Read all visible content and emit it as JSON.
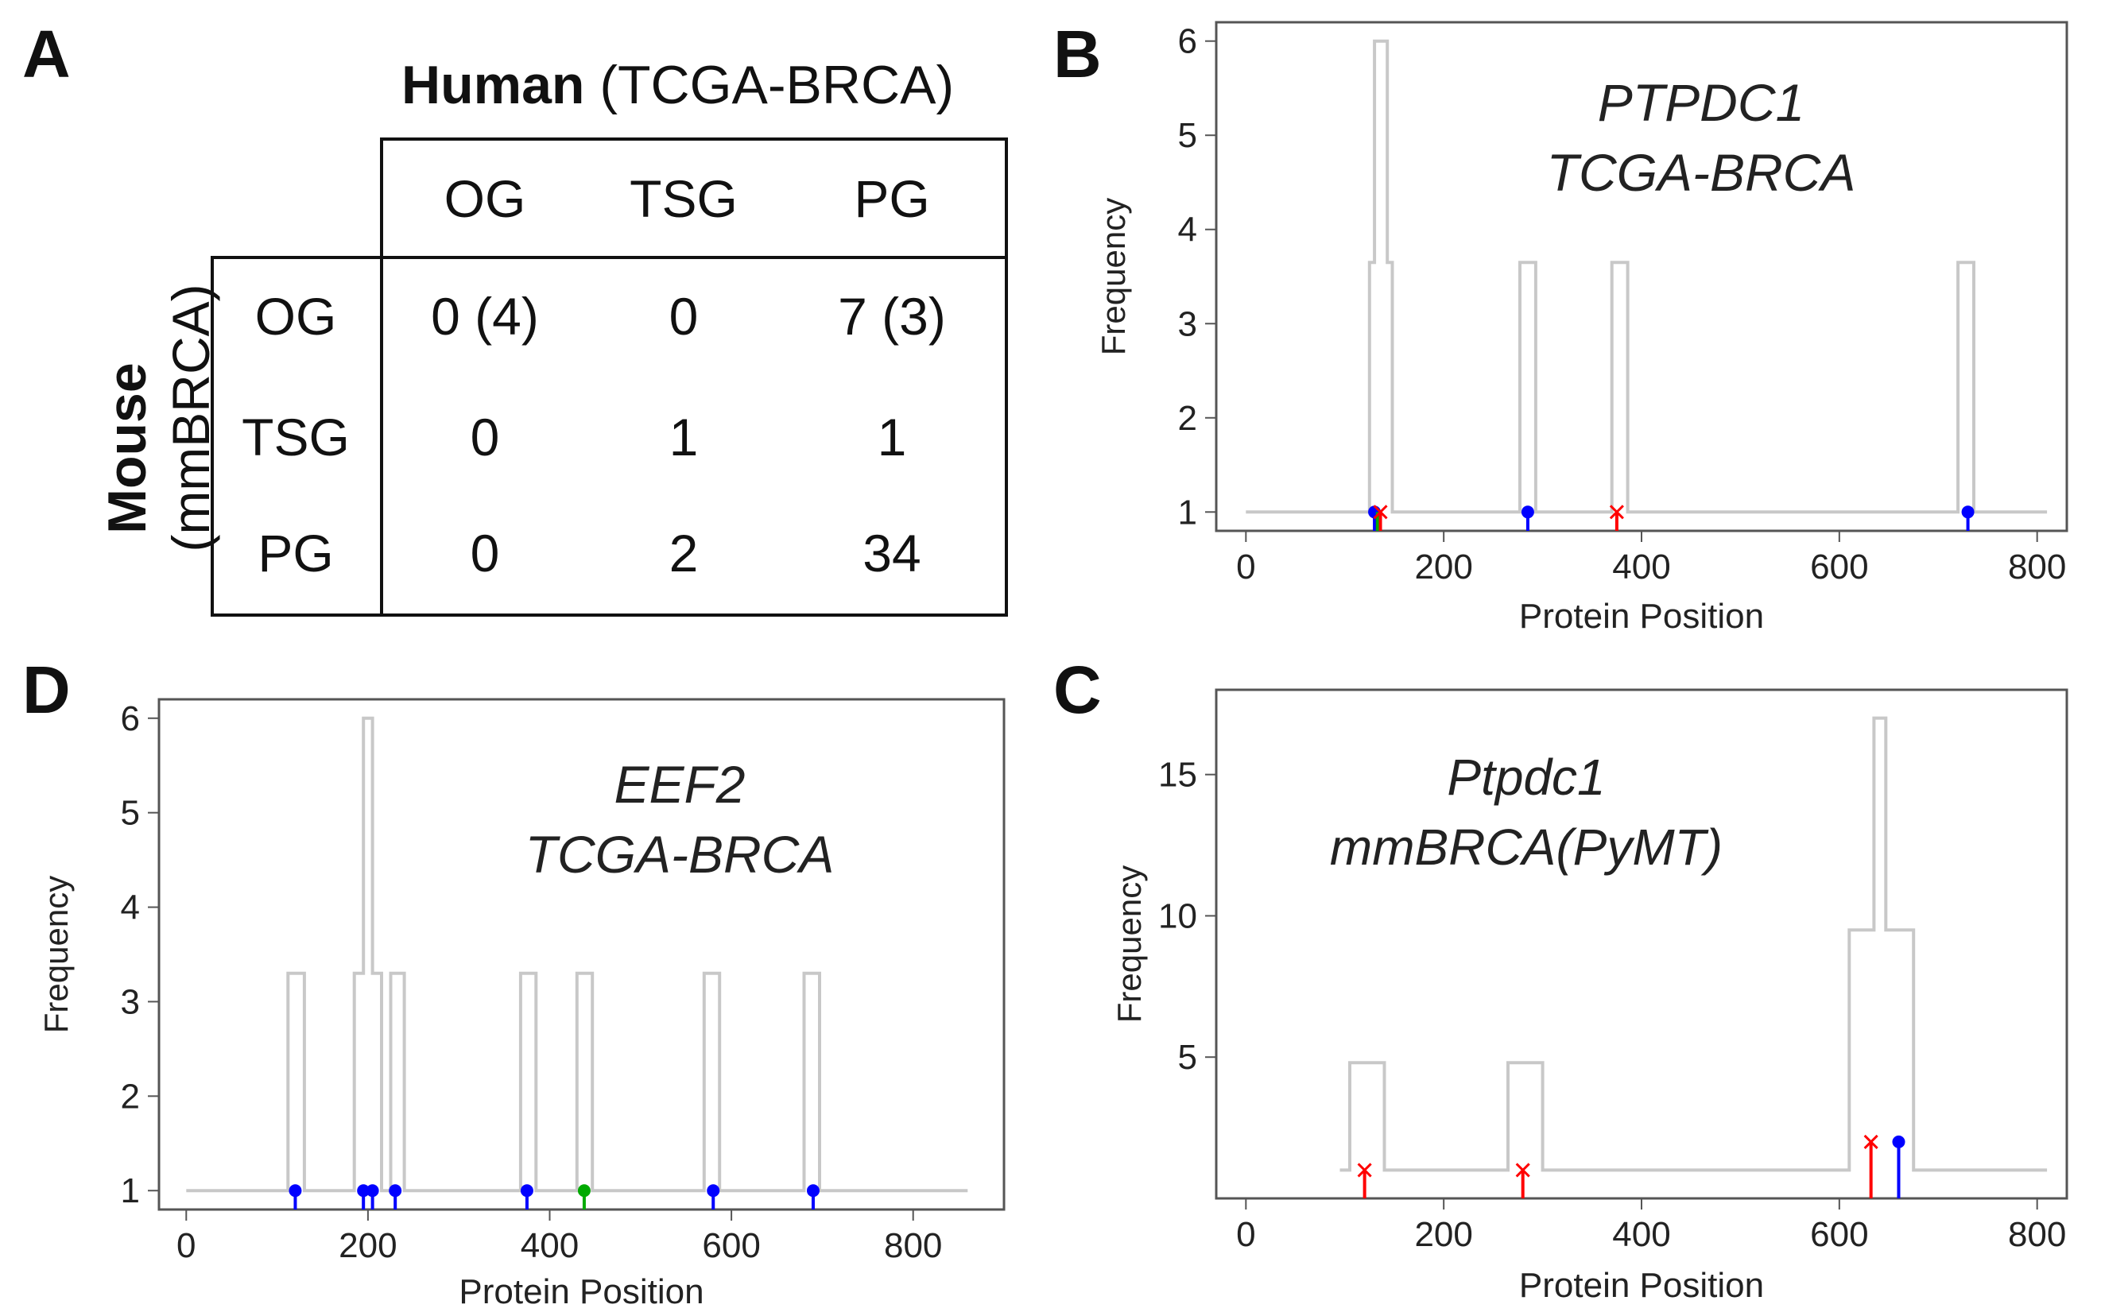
{
  "panels": {
    "a": {
      "letter": "A",
      "human_label_bold": "Human",
      "human_label_rest": "(TCGA-BRCA)",
      "mouse_label_bold": "Mouse",
      "mouse_label_rest": "(mmBRCA)",
      "col_headers": [
        "OG",
        "TSG",
        "PG"
      ],
      "row_headers": [
        "OG",
        "TSG",
        "PG"
      ],
      "cells": [
        [
          "0 (4)",
          "0",
          "7 (3)"
        ],
        [
          "0",
          "1",
          "1"
        ],
        [
          "0",
          "2",
          "34"
        ]
      ]
    },
    "b": {
      "letter": "B"
    },
    "c": {
      "letter": "C"
    },
    "d": {
      "letter": "D"
    }
  },
  "chart_data": [
    {
      "id": "B",
      "type": "line",
      "title_lines": [
        "PTPDC1",
        "TCGA-BRCA"
      ],
      "xlabel": "Protein Position",
      "ylabel": "Frequency",
      "xlim": [
        -30,
        830
      ],
      "ylim": [
        0.8,
        6.2
      ],
      "xticks": [
        0,
        200,
        400,
        600,
        800
      ],
      "yticks": [
        1,
        2,
        3,
        4,
        5,
        6
      ],
      "line_color": "#c8c8c8",
      "profile": [
        [
          0,
          1
        ],
        [
          125,
          1
        ],
        [
          125,
          3.65
        ],
        [
          130,
          3.65
        ],
        [
          130,
          6
        ],
        [
          143,
          6
        ],
        [
          143,
          3.65
        ],
        [
          148,
          3.65
        ],
        [
          148,
          1
        ],
        [
          277,
          1
        ],
        [
          277,
          3.65
        ],
        [
          293,
          3.65
        ],
        [
          293,
          1
        ],
        [
          370,
          1
        ],
        [
          370,
          3.65
        ],
        [
          386,
          3.65
        ],
        [
          386,
          1
        ],
        [
          720,
          1
        ],
        [
          720,
          3.65
        ],
        [
          736,
          3.65
        ],
        [
          736,
          1
        ],
        [
          810,
          1
        ]
      ],
      "mutations": [
        {
          "x": 130,
          "y": 1,
          "type": "dot",
          "color": "#0000ff"
        },
        {
          "x": 133,
          "y": 1,
          "type": "stem",
          "color": "#00aa00"
        },
        {
          "x": 136,
          "y": 1,
          "type": "cross",
          "color": "#ff0000"
        },
        {
          "x": 285,
          "y": 1,
          "type": "dot",
          "color": "#0000ff"
        },
        {
          "x": 375,
          "y": 1,
          "type": "cross",
          "color": "#ff0000"
        },
        {
          "x": 730,
          "y": 1,
          "type": "dot",
          "color": "#0000ff"
        }
      ]
    },
    {
      "id": "C",
      "type": "line",
      "title_lines": [
        "Ptpdc1",
        "mmBRCA(PyMT)"
      ],
      "xlabel": "Protein Position",
      "ylabel": "Frequency",
      "xlim": [
        -30,
        830
      ],
      "ylim": [
        0,
        18
      ],
      "xticks": [
        0,
        200,
        400,
        600,
        800
      ],
      "yticks": [
        5,
        10,
        15
      ],
      "line_color": "#c8c8c8",
      "profile": [
        [
          95,
          1
        ],
        [
          105,
          1
        ],
        [
          105,
          4.8
        ],
        [
          140,
          4.8
        ],
        [
          140,
          1
        ],
        [
          265,
          1
        ],
        [
          265,
          4.8
        ],
        [
          300,
          4.8
        ],
        [
          300,
          1
        ],
        [
          610,
          1
        ],
        [
          610,
          9.5
        ],
        [
          635,
          9.5
        ],
        [
          635,
          17
        ],
        [
          647,
          17
        ],
        [
          647,
          9.5
        ],
        [
          675,
          9.5
        ],
        [
          675,
          1
        ],
        [
          810,
          1
        ]
      ],
      "mutations": [
        {
          "x": 120,
          "y": 1,
          "type": "cross",
          "color": "#ff0000"
        },
        {
          "x": 280,
          "y": 1,
          "type": "cross",
          "color": "#ff0000"
        },
        {
          "x": 632,
          "y": 2,
          "type": "cross",
          "color": "#ff0000"
        },
        {
          "x": 660,
          "y": 2,
          "type": "dot",
          "color": "#0000ff"
        }
      ]
    },
    {
      "id": "D",
      "type": "line",
      "title_lines": [
        "EEF2",
        "TCGA-BRCA"
      ],
      "xlabel": "Protein Position",
      "ylabel": "Frequency",
      "xlim": [
        -30,
        900
      ],
      "ylim": [
        0.8,
        6.2
      ],
      "xticks": [
        0,
        200,
        400,
        600,
        800
      ],
      "yticks": [
        1,
        2,
        3,
        4,
        5,
        6
      ],
      "line_color": "#c8c8c8",
      "profile": [
        [
          0,
          1
        ],
        [
          112,
          1
        ],
        [
          112,
          3.3
        ],
        [
          130,
          3.3
        ],
        [
          130,
          1
        ],
        [
          185,
          1
        ],
        [
          185,
          3.3
        ],
        [
          195,
          3.3
        ],
        [
          195,
          6
        ],
        [
          205,
          6
        ],
        [
          205,
          3.3
        ],
        [
          215,
          3.3
        ],
        [
          215,
          1
        ],
        [
          225,
          1
        ],
        [
          225,
          3.3
        ],
        [
          240,
          3.3
        ],
        [
          240,
          1
        ],
        [
          368,
          1
        ],
        [
          368,
          3.3
        ],
        [
          385,
          3.3
        ],
        [
          385,
          1
        ],
        [
          430,
          1
        ],
        [
          430,
          3.3
        ],
        [
          447,
          3.3
        ],
        [
          447,
          1
        ],
        [
          570,
          1
        ],
        [
          570,
          3.3
        ],
        [
          587,
          3.3
        ],
        [
          587,
          1
        ],
        [
          680,
          1
        ],
        [
          680,
          3.3
        ],
        [
          697,
          3.3
        ],
        [
          697,
          1
        ],
        [
          860,
          1
        ]
      ],
      "mutations": [
        {
          "x": 120,
          "y": 1,
          "type": "dot",
          "color": "#0000ff"
        },
        {
          "x": 195,
          "y": 1,
          "type": "dot",
          "color": "#0000ff"
        },
        {
          "x": 205,
          "y": 1,
          "type": "dot",
          "color": "#0000ff"
        },
        {
          "x": 230,
          "y": 1,
          "type": "dot",
          "color": "#0000ff"
        },
        {
          "x": 375,
          "y": 1,
          "type": "dot",
          "color": "#0000ff"
        },
        {
          "x": 438,
          "y": 1,
          "type": "dot",
          "color": "#00aa00"
        },
        {
          "x": 580,
          "y": 1,
          "type": "dot",
          "color": "#0000ff"
        },
        {
          "x": 690,
          "y": 1,
          "type": "dot",
          "color": "#0000ff"
        }
      ]
    }
  ]
}
